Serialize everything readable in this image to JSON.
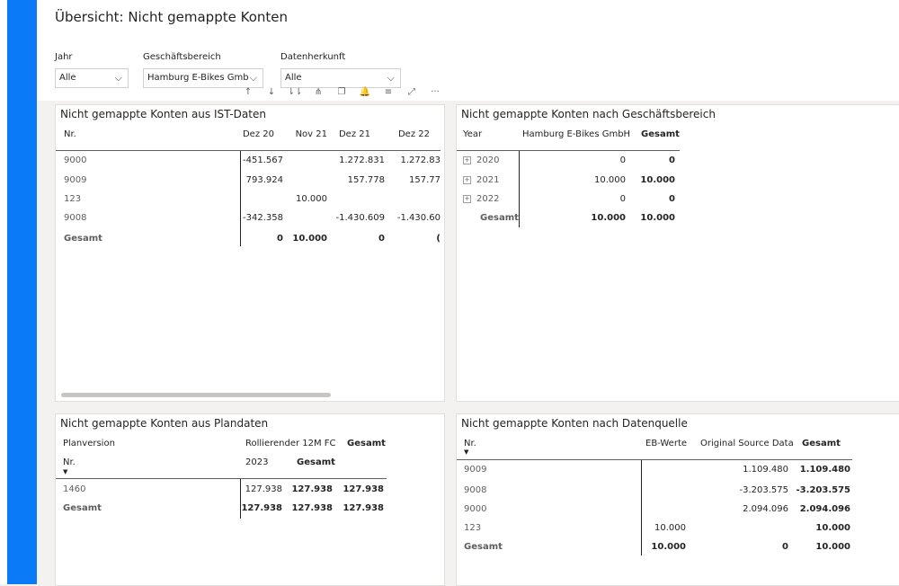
{
  "page": {
    "title": "Übersicht: Nicht gemappte Konten"
  },
  "slicers": [
    {
      "label": "Jahr",
      "value": "Alle"
    },
    {
      "label": "Geschäftsbereich",
      "value": "Hamburg E-Bikes GmbH"
    },
    {
      "label": "Datenherkunft",
      "value": "Alle"
    }
  ],
  "toolbar": {
    "icons": [
      "sort-ascending-icon",
      "sort-descending-icon",
      "drill-down-all-icon",
      "expand-hierarchy-icon",
      "copy-icon",
      "pin-icon",
      "filter-icon",
      "focus-mode-icon",
      "more-options-icon"
    ],
    "glyphs": [
      "↑",
      "↓",
      "⇂⇂",
      "⋔",
      "❐",
      "🔔",
      "≡",
      "⤢",
      "···"
    ]
  },
  "ist": {
    "title": "Nicht gemappte Konten aus IST-Daten",
    "row_header": "Nr.",
    "columns": [
      "Dez 20",
      "Nov 21",
      "Dez 21",
      "Dez 22"
    ],
    "rows": [
      {
        "nr": "9000",
        "vals": [
          "-451.567",
          "",
          "1.272.831",
          "1.272.83"
        ]
      },
      {
        "nr": "9009",
        "vals": [
          "793.924",
          "",
          "157.778",
          "157.77"
        ]
      },
      {
        "nr": "123",
        "vals": [
          "",
          "10.000",
          "",
          ""
        ]
      },
      {
        "nr": "9008",
        "vals": [
          "-342.358",
          "",
          "-1.430.609",
          "-1.430.60"
        ]
      }
    ],
    "total": {
      "label": "Gesamt",
      "vals": [
        "0",
        "10.000",
        "0",
        "("
      ]
    }
  },
  "gb": {
    "title": "Nicht gemappte Konten nach Geschäftsbereich",
    "row_header": "Year",
    "col1": "Hamburg E-Bikes GmbH",
    "col2": "Gesamt",
    "rows": [
      {
        "year": "2020",
        "v1": "0",
        "v2": "0"
      },
      {
        "year": "2021",
        "v1": "10.000",
        "v2": "10.000"
      },
      {
        "year": "2022",
        "v1": "0",
        "v2": "0"
      }
    ],
    "total": {
      "label": "Gesamt",
      "v1": "10.000",
      "v2": "10.000"
    }
  },
  "plan": {
    "title": "Nicht gemappte Konten aus Plandaten",
    "hdr_planversion": "Planversion",
    "hdr_rolling": "Rollierender 12M FC",
    "hdr_gesamt": "Gesamt",
    "hdr_nr": "Nr.",
    "hdr_2023": "2023",
    "hdr_sub_gesamt": "Gesamt",
    "rows": [
      {
        "nr": "1460",
        "v1": "127.938",
        "v2": "127.938",
        "v3": "127.938"
      }
    ],
    "total": {
      "label": "Gesamt",
      "v1": "127.938",
      "v2": "127.938",
      "v3": "127.938"
    }
  },
  "dq": {
    "title": "Nicht gemappte Konten nach Datenquelle",
    "hdr_nr": "Nr.",
    "hdr_eb": "EB-Werte",
    "hdr_orig": "Original Source Data",
    "hdr_gesamt": "Gesamt",
    "rows": [
      {
        "nr": "9009",
        "eb": "",
        "orig": "1.109.480",
        "ges": "1.109.480"
      },
      {
        "nr": "9008",
        "eb": "",
        "orig": "-3.203.575",
        "ges": "-3.203.575"
      },
      {
        "nr": "9000",
        "eb": "",
        "orig": "2.094.096",
        "ges": "2.094.096"
      },
      {
        "nr": "123",
        "eb": "10.000",
        "orig": "",
        "ges": "10.000"
      }
    ],
    "total": {
      "label": "Gesamt",
      "eb": "10.000",
      "orig": "0",
      "ges": "10.000"
    }
  },
  "colors": {
    "accent": "#0a7af7",
    "canvas": "#f3f2f1",
    "visual_bg": "#ffffff"
  }
}
